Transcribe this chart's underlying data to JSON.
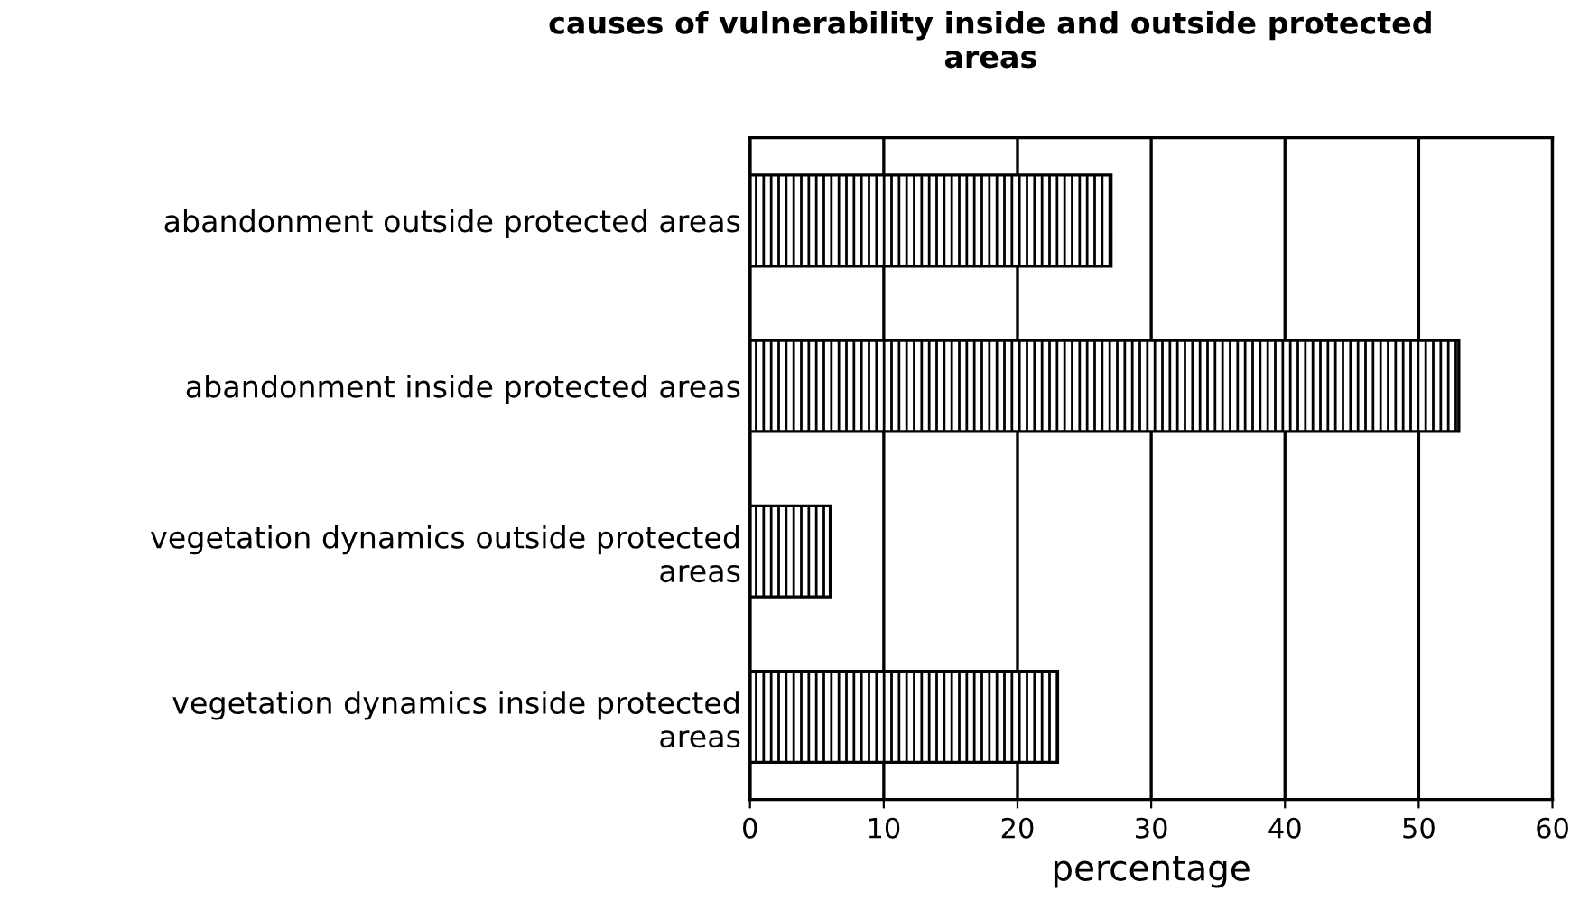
{
  "chart_data": {
    "type": "bar",
    "orientation": "horizontal",
    "title": "causes of vulnerability inside and outside protected\nareas",
    "xlabel": "percentage",
    "categories": [
      "abandonment outside protected areas",
      "abandonment inside protected areas",
      "vegetation dynamics outside protected\nareas",
      "vegetation dynamics inside protected\nareas"
    ],
    "values": [
      27,
      53,
      6,
      23
    ],
    "color": "#000000",
    "xlim": [
      0,
      60
    ],
    "xticks": [
      0,
      10,
      20,
      30,
      40,
      50,
      60
    ],
    "grid": "x"
  }
}
